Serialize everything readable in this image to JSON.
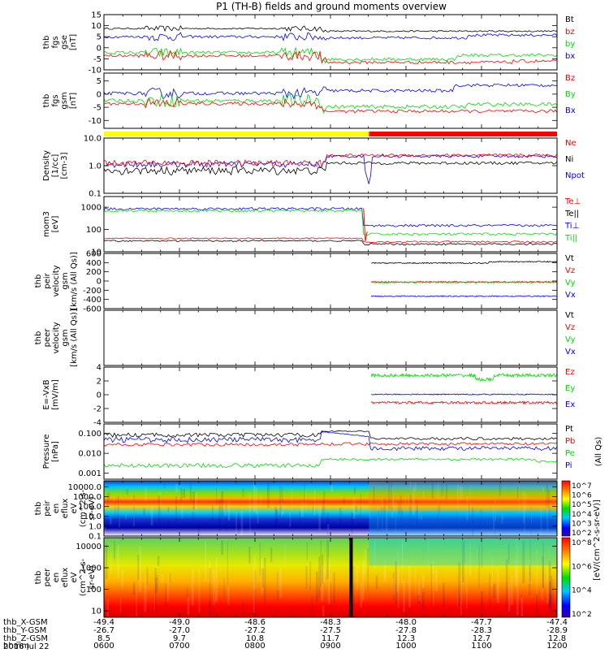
{
  "title": "P1 (TH-B) fields and ground moments overview",
  "date": "2016 Jul 22",
  "colors": {
    "black": "#000000",
    "red": "#ff0000",
    "green": "#00dd00",
    "blue": "#0000ff",
    "yellow": "#ffff00"
  },
  "chart_data": [
    {
      "type": "line",
      "id": "fgs_gse",
      "ylabel": [
        "thb",
        "fgs",
        "gse",
        "[nT]"
      ],
      "ylim": [
        -10,
        15
      ],
      "yticks": [
        15,
        10,
        5,
        0,
        -5,
        -10
      ],
      "series": [
        {
          "name": "Bt",
          "color": "black"
        },
        {
          "name": "bz",
          "color": "red"
        },
        {
          "name": "by",
          "color": "green"
        },
        {
          "name": "bx",
          "color": "blue"
        }
      ]
    },
    {
      "type": "line",
      "id": "fgs_gsm",
      "ylabel": [
        "thb",
        "fgs",
        "gsm",
        "[nT]"
      ],
      "ylim": [
        -13,
        8
      ],
      "yticks": [
        5,
        0,
        -5,
        -10
      ],
      "series": [
        {
          "name": "Bz",
          "color": "red"
        },
        {
          "name": "By",
          "color": "green"
        },
        {
          "name": "Bx",
          "color": "blue"
        }
      ]
    },
    {
      "type": "line",
      "id": "density",
      "scale": "log",
      "ylabel": [
        "Density",
        "[1/cc]",
        "[cm-3]"
      ],
      "ylim": [
        0.1,
        10
      ],
      "yticks": [
        "10.0",
        "1.0",
        "0.1"
      ],
      "series": [
        {
          "name": "Ne",
          "color": "red"
        },
        {
          "name": "Ni",
          "color": "black"
        },
        {
          "name": "Npot",
          "color": "blue"
        }
      ]
    },
    {
      "type": "line",
      "id": "temp",
      "scale": "log",
      "ylabel": [
        "mom3",
        "[eV]"
      ],
      "ylim": [
        10,
        3000
      ],
      "yticks": [
        "1000",
        "100",
        "10"
      ],
      "series": [
        {
          "name": "Te⊥",
          "color": "red"
        },
        {
          "name": "Te||",
          "color": "black"
        },
        {
          "name": "Ti⊥",
          "color": "blue"
        },
        {
          "name": "Ti||",
          "color": "green"
        }
      ]
    },
    {
      "type": "line",
      "id": "vel_gsm",
      "ylabel": [
        "thb",
        "peir",
        "velocity",
        "gsm",
        "[km/s (All Qs)]"
      ],
      "ylim": [
        -600,
        600
      ],
      "yticks": [
        600,
        400,
        200,
        0,
        -200,
        -400,
        -600
      ],
      "series": [
        {
          "name": "Vt",
          "color": "black"
        },
        {
          "name": "Vz",
          "color": "red"
        },
        {
          "name": "Vy",
          "color": "green"
        },
        {
          "name": "Vx",
          "color": "blue"
        }
      ]
    },
    {
      "type": "line",
      "id": "vel_peer",
      "ylabel": [
        "thb",
        "peer",
        "velocity",
        "gsm",
        "[km/s (All Qs)]"
      ],
      "series": [
        {
          "name": "Vt",
          "color": "black"
        },
        {
          "name": "Vz",
          "color": "red"
        },
        {
          "name": "Vy",
          "color": "green"
        },
        {
          "name": "Vx",
          "color": "blue"
        }
      ]
    },
    {
      "type": "line",
      "id": "efield",
      "ylabel": [
        "E=-VxB",
        "[mV/m]"
      ],
      "ylim": [
        -4,
        4
      ],
      "yticks": [
        4,
        2,
        0,
        -2,
        -4
      ],
      "series": [
        {
          "name": "Ez",
          "color": "red"
        },
        {
          "name": "Ey",
          "color": "green"
        },
        {
          "name": "Ex",
          "color": "blue"
        }
      ]
    },
    {
      "type": "line",
      "id": "pressure",
      "scale": "log",
      "ylabel": [
        "Pressure",
        "[nPa]"
      ],
      "ylim": [
        0.0005,
        0.3
      ],
      "yticks": [
        "0.100",
        "0.010",
        "0.001"
      ],
      "right_label": "(All Qs)",
      "series": [
        {
          "name": "Pt",
          "color": "black"
        },
        {
          "name": "Pb",
          "color": "red"
        },
        {
          "name": "Pe",
          "color": "green"
        },
        {
          "name": "Pi",
          "color": "blue"
        }
      ]
    },
    {
      "type": "heatmap",
      "id": "peir_spec",
      "scale": "log",
      "ylabel": [
        "thb",
        "peir",
        "en",
        "eflux",
        "eV",
        "(cm^2-s-",
        "sr-eV)"
      ],
      "ylim": [
        0.1,
        40000
      ],
      "yticks": [
        "10000.0",
        "1000.0",
        "100.0",
        "10.0",
        "1.0",
        "0.1"
      ],
      "colorbar": {
        "ticks": [
          "10^7",
          "10^6",
          "10^5",
          "10^4",
          "10^3",
          "10^2"
        ],
        "label": "[eV/(cm^2-s-sr-eV)]"
      }
    },
    {
      "type": "heatmap",
      "id": "peer_spec",
      "scale": "log",
      "ylabel": [
        "thb",
        "peer",
        "en",
        "eflux",
        "eV",
        "(cm^2-s-",
        "sr-eV)"
      ],
      "ylim": [
        5,
        25000
      ],
      "yticks": [
        "10000",
        "1000",
        "100",
        "10"
      ],
      "colorbar": {
        "ticks": [
          "10^8",
          "10^6",
          "10^4",
          "10^2"
        ],
        "label": "[eV/(cm^2-s-sr-eV)]"
      }
    }
  ],
  "state_bar": [
    {
      "from": "0600",
      "to": "0945",
      "color": "yellow"
    },
    {
      "from": "0945",
      "to": "1200",
      "color": "red"
    }
  ],
  "xaxis": {
    "rows": [
      {
        "label": "thb_X-GSM",
        "values": [
          "-49.4",
          "-49.0",
          "-48.6",
          "-48.3",
          "-48.0",
          "-47.7",
          "-47.4"
        ]
      },
      {
        "label": "thb_Y-GSM",
        "values": [
          "-26.7",
          "-27.0",
          "-27.2",
          "-27.5",
          "-27.8",
          "-28.3",
          "-28.9"
        ]
      },
      {
        "label": "thb_Z-GSM",
        "values": [
          "8.5",
          "9.7",
          "10.8",
          "11.7",
          "12.3",
          "12.7",
          "12.8"
        ]
      },
      {
        "label": "hhmm",
        "values": [
          "0600",
          "0700",
          "0800",
          "0900",
          "1000",
          "1100",
          "1200"
        ]
      }
    ]
  },
  "colorbar_side_label": "[eV/(cm^2-s-sr-eV)]"
}
